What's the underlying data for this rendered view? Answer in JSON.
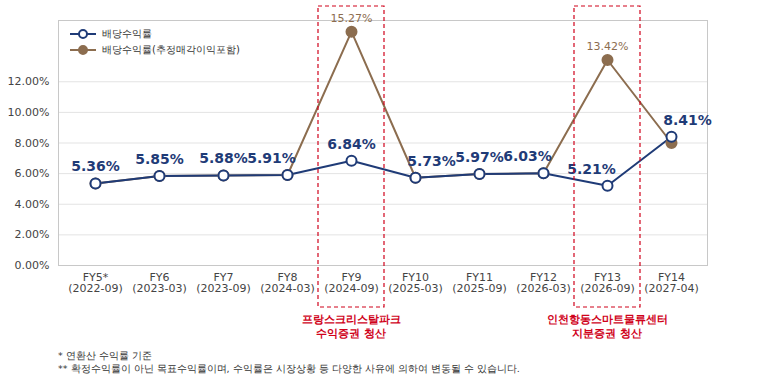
{
  "chart_data": {
    "type": "line",
    "categories": [
      "FY5*\n(2022-09)",
      "FY6\n(2023-03)",
      "FY7\n(2023-09)",
      "FY8\n(2024-03)",
      "FY9\n(2024-09)",
      "FY10\n(2025-03)",
      "FY11\n(2025-09)",
      "FY12\n(2026-03)",
      "FY13\n(2026-09)",
      "FY14\n(2027-04)"
    ],
    "series": [
      {
        "name": "배당수익률(추정매각이익포함)",
        "color": "#8c6d4f",
        "marker": "circle",
        "values": [
          5.36,
          5.85,
          5.88,
          5.91,
          15.27,
          5.73,
          5.97,
          6.03,
          13.42,
          8.0
        ],
        "value_labels": [
          null,
          null,
          null,
          null,
          "15.27%",
          null,
          null,
          null,
          "13.42%",
          null
        ]
      },
      {
        "name": "배당수익률",
        "color": "#1f3b77",
        "marker": "open_circle",
        "values": [
          5.36,
          5.85,
          5.88,
          5.91,
          6.84,
          5.73,
          5.97,
          6.03,
          5.21,
          8.41
        ],
        "value_labels": [
          "5.36%",
          "5.85%",
          "5.88%",
          "5.91%",
          "6.84%",
          "5.73%",
          "5.97%",
          "6.03%",
          "5.21%",
          "8.41%"
        ]
      }
    ],
    "ylim": [
      0,
      16
    ],
    "yticks": [
      {
        "value": 0,
        "label": "0.00%"
      },
      {
        "value": 2,
        "label": "2.00%"
      },
      {
        "value": 4,
        "label": "4.00%"
      },
      {
        "value": 6,
        "label": "6.00%"
      },
      {
        "value": 8,
        "label": "8.00%"
      },
      {
        "value": 10,
        "label": "10.00%"
      },
      {
        "value": 12,
        "label": "12.00%"
      }
    ],
    "grid": true,
    "data_labels": true,
    "legend": "top-left",
    "annotations": [
      {
        "x": "FY9\n(2024-09)",
        "text": "프랑스크리스탈파크\n수익증권 청산"
      },
      {
        "x": "FY13\n(2026-09)",
        "text": "인천항동스마트물류센터\n지분증권 청산"
      }
    ],
    "footnotes": [
      "* 연환산 수익률 기준",
      "** 확정수익률이 아닌 목표수익률이며, 수익률은 시장상황 등 다양한 사유에 의하여 변동될 수 있습니다."
    ]
  }
}
